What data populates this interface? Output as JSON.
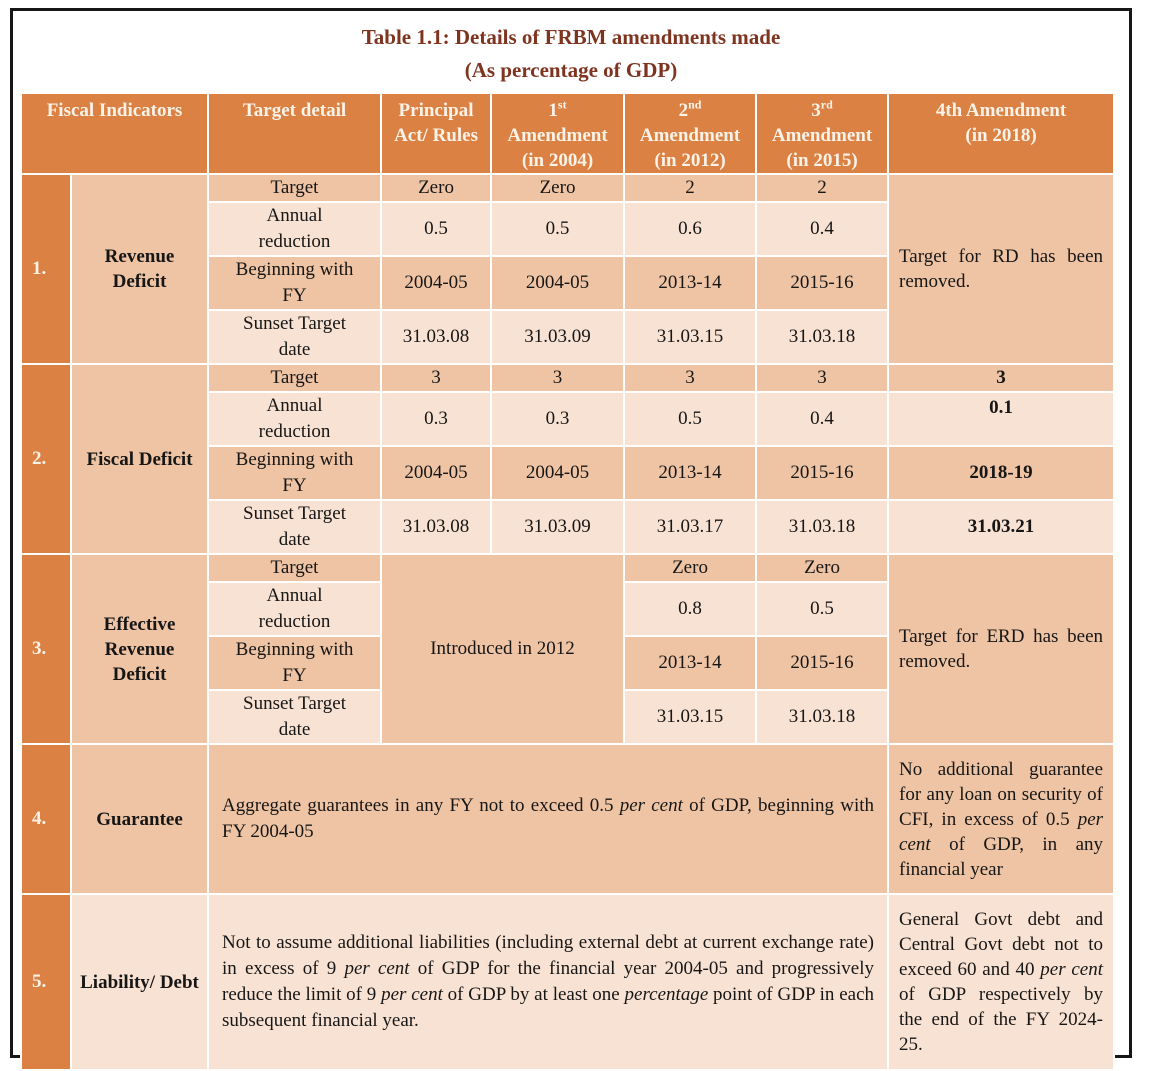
{
  "colors": {
    "header_orange": "#DB8144",
    "row_medium_peach": "#EEC4A4",
    "row_light_peach": "#F8E2D3",
    "title_maroon": "#7E341F",
    "header_text_cream": "#FCF3E8",
    "body_text": "#161616",
    "frame_border": "#161616",
    "gridline": "#FFFFFF"
  },
  "title": {
    "line1": "Table 1.1: Details of FRBM amendments made",
    "line2": "(As percentage of GDP)"
  },
  "header": {
    "fiscal_indicators": "Fiscal Indicators",
    "target_detail": "Target detail",
    "principal": "Principal Act/ Rules",
    "amend1": [
      {
        "t": "1"
      },
      {
        "sup": true,
        "t": "st"
      },
      {
        "br": true
      },
      {
        "t": "Amendment"
      },
      {
        "br": true
      },
      {
        "t": "(in 2004)"
      }
    ],
    "amend2": [
      {
        "t": "2"
      },
      {
        "sup": true,
        "t": "nd"
      },
      {
        "br": true
      },
      {
        "t": "Amendment"
      },
      {
        "br": true
      },
      {
        "t": "(in 2012)"
      }
    ],
    "amend3": [
      {
        "t": "3"
      },
      {
        "sup": true,
        "t": "rd"
      },
      {
        "br": true
      },
      {
        "t": "Amendment"
      },
      {
        "br": true
      },
      {
        "t": "(in 2015)"
      }
    ],
    "amend4": [
      {
        "t": "4th Amendment"
      },
      {
        "br": true
      },
      {
        "t": "(in 2018)"
      }
    ]
  },
  "sub_labels": [
    "Target",
    "Annual reduction",
    "Beginning with FY",
    "Sunset Target date"
  ],
  "rows": [
    {
      "num": "1.",
      "name": "Revenue Deficit",
      "values": [
        [
          "Zero",
          "Zero",
          "2",
          "2"
        ],
        [
          "0.5",
          "0.5",
          "0.6",
          "0.4"
        ],
        [
          "2004-05",
          "2004-05",
          "2013-14",
          "2015-16"
        ],
        [
          "31.03.08",
          "31.03.09",
          "31.03.15",
          "31.03.18"
        ]
      ],
      "note": "Target for RD has been removed."
    },
    {
      "num": "2.",
      "name": "Fiscal Deficit",
      "values": [
        [
          "3",
          "3",
          "3",
          "3"
        ],
        [
          "0.3",
          "0.3",
          "0.5",
          "0.4"
        ],
        [
          "2004-05",
          "2004-05",
          "2013-14",
          "2015-16"
        ],
        [
          "31.03.08",
          "31.03.09",
          "31.03.17",
          "31.03.18"
        ]
      ],
      "amend4": [
        "3",
        "0.1",
        "2018-19",
        "31.03.21"
      ]
    },
    {
      "num": "3.",
      "name": "Effective Revenue Deficit",
      "merged": "Introduced in 2012",
      "values": [
        [
          "Zero",
          "Zero"
        ],
        [
          "0.8",
          "0.5"
        ],
        [
          "2013-14",
          "2015-16"
        ],
        [
          "31.03.15",
          "31.03.18"
        ]
      ],
      "note": "Target for ERD has been removed."
    },
    {
      "num": "4.",
      "name": "Guarantee",
      "text": [
        {
          "t": "Aggregate guarantees in any FY not to exceed 0.5 "
        },
        {
          "i": true,
          "t": "per cent"
        },
        {
          "t": " of GDP, beginning with FY 2004-05"
        }
      ],
      "note_rich": [
        {
          "t": "No additional guarantee for any loan on security of CFI, in excess of 0.5 "
        },
        {
          "i": true,
          "t": "per cent"
        },
        {
          "t": " of GDP, in any financial year"
        }
      ]
    },
    {
      "num": "5.",
      "name": "Liability/ Debt",
      "text": [
        {
          "t": "Not to assume additional liabilities (including external debt at current exchange rate) in excess of 9 "
        },
        {
          "i": true,
          "t": "per cent"
        },
        {
          "t": " of GDP for the financial year 2004-05 and progressively reduce the limit of 9 "
        },
        {
          "i": true,
          "t": "per cent"
        },
        {
          "t": " of GDP by at least one "
        },
        {
          "i": true,
          "t": "percentage"
        },
        {
          "t": " point of GDP in each subsequent financial year."
        }
      ],
      "note_rich": [
        {
          "t": "General Govt debt and Central Govt debt not to exceed 60 and 40 "
        },
        {
          "i": true,
          "t": "per cent"
        },
        {
          "t": " of GDP respectively by the end of the FY 2024-25."
        }
      ]
    }
  ]
}
